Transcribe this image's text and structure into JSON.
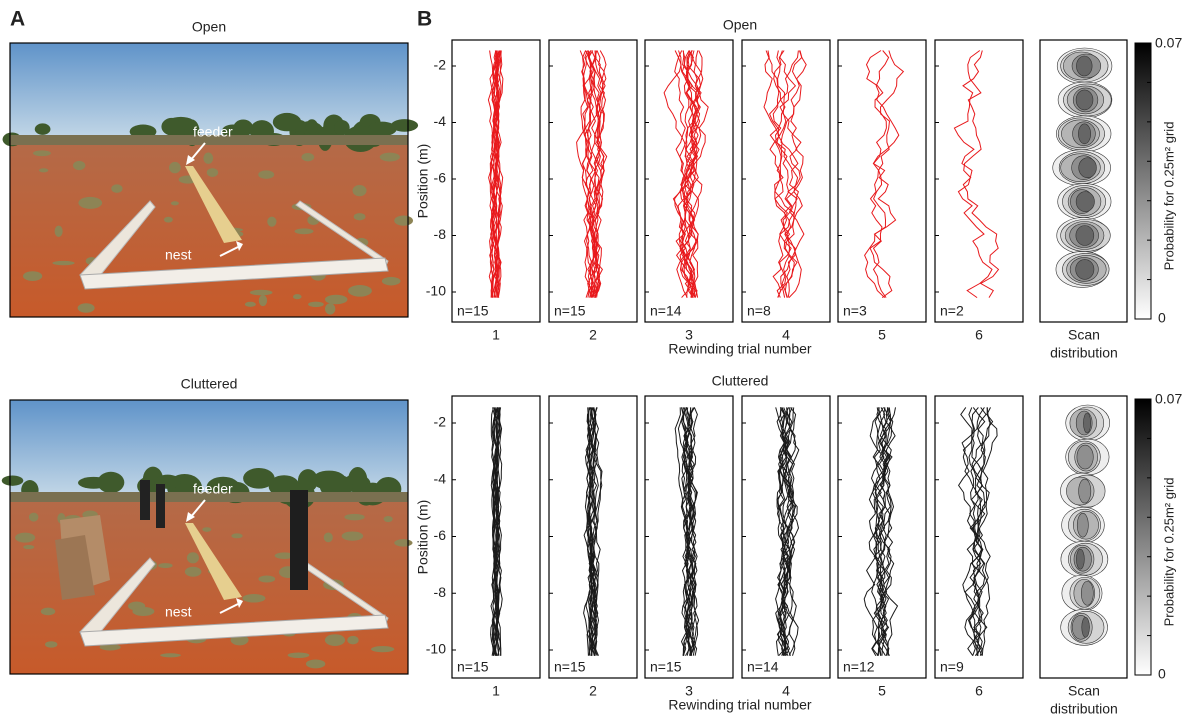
{
  "panel_a": {
    "label": "A",
    "photos": [
      {
        "title": "Open",
        "labels": [
          "feeder",
          "nest"
        ]
      },
      {
        "title": "Cluttered",
        "labels": [
          "feeder",
          "nest"
        ]
      }
    ]
  },
  "panel_b": {
    "label": "B",
    "y_axis_label": "Position (m)",
    "x_axis_label": "Rewinding trial number",
    "yticks": [
      "-2",
      "-4",
      "-6",
      "-8",
      "-10"
    ],
    "scan_label": [
      "Scan",
      "distribution"
    ],
    "colorbar_label": "Probability for 0.25m² grid",
    "colorbar_ticks": [
      "0.07",
      "0"
    ],
    "rows": [
      {
        "title": "Open",
        "color": "#e8191c",
        "trials": [
          "1",
          "2",
          "3",
          "4",
          "5",
          "6"
        ],
        "counts": [
          "n=15",
          "n=15",
          "n=14",
          "n=8",
          "n=3",
          "n=2"
        ]
      },
      {
        "title": "Cluttered",
        "color": "#1a1a1a",
        "trials": [
          "1",
          "2",
          "3",
          "4",
          "5",
          "6"
        ],
        "counts": [
          "n=15",
          "n=15",
          "n=15",
          "n=14",
          "n=12",
          "n=9"
        ]
      }
    ]
  }
}
